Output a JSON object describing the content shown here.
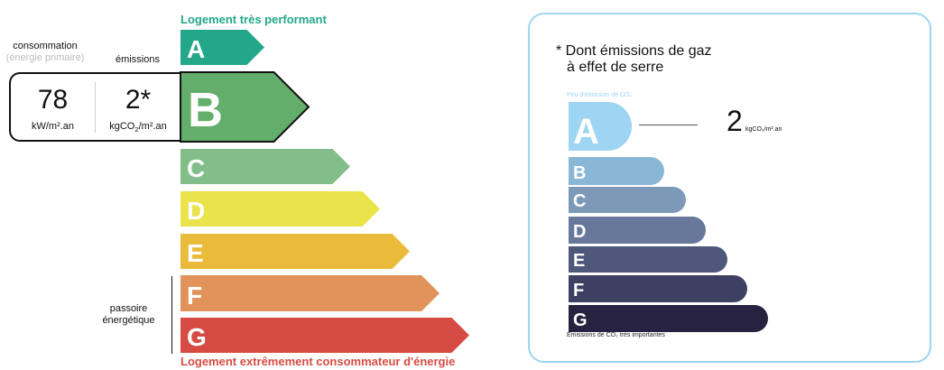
{
  "energy_label": {
    "top_label": "Logement très performant",
    "bottom_label": "Logement extrêmement consommateur d'énergie",
    "consumption_label": "consommation",
    "consumption_sublabel": "(énergie primaire)",
    "emissions_label": "émissions",
    "consumption_value": "78",
    "consumption_unit": "kW/m².an",
    "emissions_value": "2*",
    "emissions_unit_pre": "kgCO",
    "emissions_unit_sub": "2",
    "emissions_unit_post": "/m².an",
    "passoire_label_1": "passoire",
    "passoire_label_2": "énergétique",
    "current_class": "B",
    "classes": [
      {
        "letter": "A",
        "color": "#22a889"
      },
      {
        "letter": "B",
        "color": "#62ae6a"
      },
      {
        "letter": "C",
        "color": "#83be8a"
      },
      {
        "letter": "D",
        "color": "#ebe34b"
      },
      {
        "letter": "E",
        "color": "#eabb3b"
      },
      {
        "letter": "F",
        "color": "#e1935b"
      },
      {
        "letter": "G",
        "color": "#d64c44"
      }
    ]
  },
  "ges_label": {
    "title_line1": "* Dont émissions de gaz",
    "title_line2": "à effet de serre",
    "top_label": "Peu d'émission de CO₂",
    "bottom_label": "Émissions de CO₂ très importantes",
    "value": "2",
    "unit": "kgCO₂/m².an",
    "current_class": "A",
    "classes": [
      {
        "letter": "A",
        "color": "#9dd5f2"
      },
      {
        "letter": "B",
        "color": "#8ab7d5"
      },
      {
        "letter": "C",
        "color": "#7c9ab8"
      },
      {
        "letter": "D",
        "color": "#67789a"
      },
      {
        "letter": "E",
        "color": "#4d587b"
      },
      {
        "letter": "F",
        "color": "#3d3f63"
      },
      {
        "letter": "G",
        "color": "#27223f"
      }
    ]
  }
}
